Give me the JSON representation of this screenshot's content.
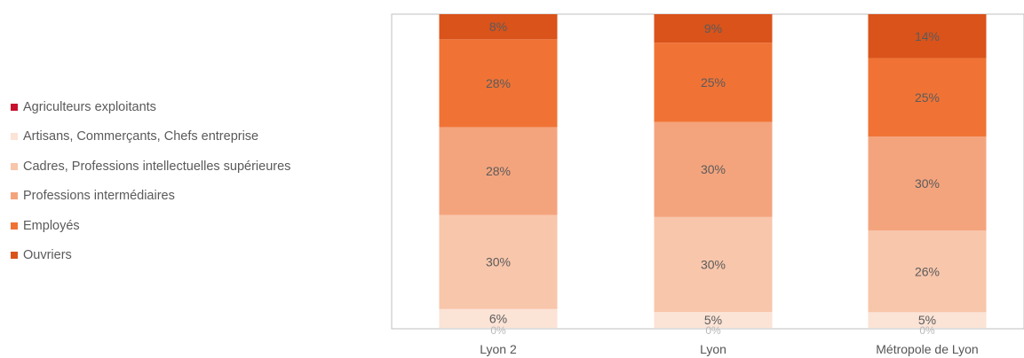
{
  "chart_data": {
    "type": "bar",
    "stacked": true,
    "categories": [
      "Lyon 2",
      "Lyon",
      "Métropole de Lyon"
    ],
    "series": [
      {
        "name": "Agriculteurs exploitants",
        "color": "#c8102e",
        "values": [
          0,
          0,
          0
        ],
        "labels": [
          "",
          "",
          ""
        ]
      },
      {
        "name": "Artisans, Commerçants, Chefs entreprise",
        "color": "#fbe3d6",
        "values": [
          6,
          5,
          5
        ],
        "labels": [
          "6%",
          "5%",
          "5%"
        ]
      },
      {
        "name": "Cadres, Professions intellectuelles supérieures",
        "color": "#f8c6ab",
        "values": [
          30,
          30,
          26
        ],
        "labels": [
          "30%",
          "30%",
          "26%"
        ]
      },
      {
        "name": "Professions intermédiaires",
        "color": "#f4a47d",
        "values": [
          28,
          30,
          30
        ],
        "labels": [
          "28%",
          "30%",
          "30%"
        ]
      },
      {
        "name": "Employés",
        "color": "#f07335",
        "values": [
          28,
          25,
          25
        ],
        "labels": [
          "28%",
          "25%",
          "25%"
        ]
      },
      {
        "name": "Ouvriers",
        "color": "#d9531b",
        "values": [
          8,
          9,
          14
        ],
        "labels": [
          "8%",
          "9%",
          "14%"
        ]
      }
    ],
    "base_labels": [
      "0%",
      "0%",
      "0%"
    ],
    "ylim": [
      0,
      100
    ],
    "legend": "left",
    "grid": false,
    "title": "",
    "xlabel": "",
    "ylabel": ""
  }
}
